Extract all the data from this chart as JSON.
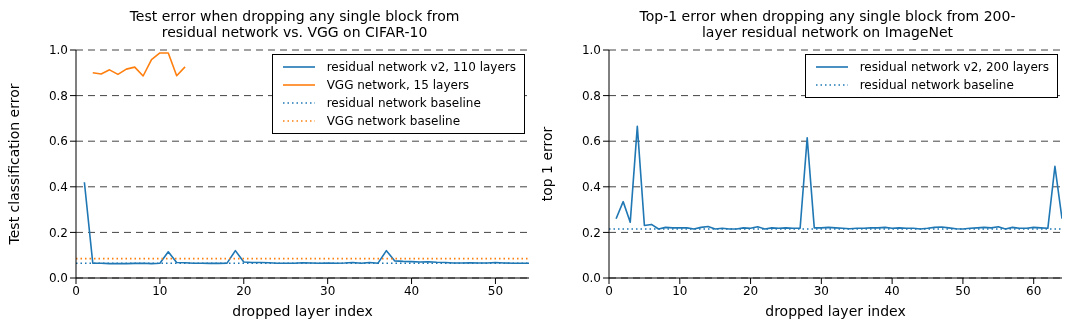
{
  "chart_data": [
    {
      "type": "line",
      "title": "Test error when dropping any single block from residual network vs. VGG on CIFAR-10",
      "xlabel": "dropped layer index",
      "ylabel": "Test classification error",
      "xlim": [
        0,
        54
      ],
      "xticks": [
        0,
        10,
        20,
        30,
        40,
        50
      ],
      "ylim": [
        0,
        1
      ],
      "yticks": [
        {
          "value": 0,
          "label": "0.0"
        },
        {
          "value": 0.2,
          "label": "0.2"
        },
        {
          "value": 0.4,
          "label": "0.4"
        },
        {
          "value": 0.6,
          "label": "0.6"
        },
        {
          "value": 0.8,
          "label": "0.8"
        },
        {
          "value": 1,
          "label": "1.0"
        }
      ],
      "grid": "y",
      "legend": "top right",
      "series": [
        {
          "name": "residual network v2, 110 layers",
          "color": "#1f77b4",
          "line_style": "solid",
          "x": [
            1,
            2,
            3,
            4,
            5,
            6,
            7,
            8,
            9,
            10,
            11,
            12,
            13,
            14,
            15,
            16,
            17,
            18,
            19,
            20,
            21,
            22,
            23,
            24,
            25,
            26,
            27,
            28,
            29,
            30,
            31,
            32,
            33,
            34,
            35,
            36,
            37,
            38,
            39,
            40,
            41,
            42,
            43,
            44,
            45,
            46,
            47,
            48,
            49,
            50,
            51,
            52,
            53,
            54
          ],
          "values": [
            0.42,
            0.065,
            0.065,
            0.063,
            0.063,
            0.063,
            0.064,
            0.065,
            0.063,
            0.065,
            0.115,
            0.068,
            0.067,
            0.065,
            0.065,
            0.064,
            0.064,
            0.065,
            0.12,
            0.07,
            0.068,
            0.068,
            0.067,
            0.065,
            0.065,
            0.065,
            0.067,
            0.066,
            0.065,
            0.066,
            0.065,
            0.066,
            0.068,
            0.065,
            0.068,
            0.065,
            0.12,
            0.075,
            0.073,
            0.072,
            0.07,
            0.071,
            0.069,
            0.068,
            0.066,
            0.066,
            0.067,
            0.066,
            0.066,
            0.068,
            0.066,
            0.065,
            0.065,
            0.065
          ]
        },
        {
          "name": "VGG network, 15 layers",
          "color": "#ff7f0e",
          "line_style": "solid",
          "x": [
            2,
            3,
            4,
            5,
            6,
            7,
            8,
            9,
            10,
            11,
            12,
            13
          ],
          "values": [
            0.9,
            0.895,
            0.913,
            0.893,
            0.916,
            0.925,
            0.886,
            0.958,
            0.987,
            0.987,
            0.887,
            0.926
          ]
        },
        {
          "name": "residual network baseline",
          "color": "#1f77b4",
          "line_style": "dotted",
          "x": [
            0,
            54
          ],
          "values": [
            0.065,
            0.065
          ]
        },
        {
          "name": "VGG network baseline",
          "color": "#ff7f0e",
          "line_style": "dotted",
          "x": [
            0,
            54
          ],
          "values": [
            0.085,
            0.085
          ]
        }
      ]
    },
    {
      "type": "line",
      "title": "Top-1 error when dropping any single block from 200-layer residual network on ImageNet",
      "xlabel": "dropped layer index",
      "ylabel": "top 1 error",
      "xlim": [
        0,
        64
      ],
      "xticks": [
        0,
        10,
        20,
        30,
        40,
        50,
        60
      ],
      "ylim": [
        0,
        1
      ],
      "yticks": [
        {
          "value": 0,
          "label": "0.0"
        },
        {
          "value": 0.2,
          "label": "0.2"
        },
        {
          "value": 0.4,
          "label": "0.4"
        },
        {
          "value": 0.6,
          "label": "0.6"
        },
        {
          "value": 0.8,
          "label": "0.8"
        },
        {
          "value": 1,
          "label": "1.0"
        }
      ],
      "grid": "y",
      "legend": "top right",
      "series": [
        {
          "name": "residual network v2, 200 layers",
          "color": "#1f77b4",
          "line_style": "solid",
          "x": [
            1,
            2,
            3,
            4,
            5,
            6,
            7,
            8,
            9,
            10,
            11,
            12,
            13,
            14,
            15,
            16,
            17,
            18,
            19,
            20,
            21,
            22,
            23,
            24,
            25,
            26,
            27,
            28,
            29,
            30,
            31,
            32,
            33,
            34,
            35,
            36,
            37,
            38,
            39,
            40,
            41,
            42,
            43,
            44,
            45,
            46,
            47,
            48,
            49,
            50,
            51,
            52,
            53,
            54,
            55,
            56,
            57,
            58,
            59,
            60,
            61,
            62,
            63,
            64
          ],
          "values": [
            0.26,
            0.335,
            0.245,
            0.665,
            0.23,
            0.235,
            0.215,
            0.222,
            0.22,
            0.22,
            0.22,
            0.215,
            0.222,
            0.226,
            0.215,
            0.218,
            0.215,
            0.215,
            0.22,
            0.218,
            0.225,
            0.215,
            0.22,
            0.218,
            0.22,
            0.218,
            0.218,
            0.615,
            0.22,
            0.22,
            0.222,
            0.22,
            0.218,
            0.216,
            0.218,
            0.218,
            0.22,
            0.22,
            0.222,
            0.218,
            0.22,
            0.218,
            0.218,
            0.215,
            0.218,
            0.222,
            0.224,
            0.22,
            0.216,
            0.215,
            0.218,
            0.22,
            0.222,
            0.22,
            0.225,
            0.215,
            0.222,
            0.218,
            0.218,
            0.222,
            0.22,
            0.218,
            0.49,
            0.26
          ]
        },
        {
          "name": "residual network baseline",
          "color": "#1f77b4",
          "line_style": "dotted",
          "x": [
            0,
            64
          ],
          "values": [
            0.215,
            0.215
          ]
        }
      ]
    }
  ]
}
